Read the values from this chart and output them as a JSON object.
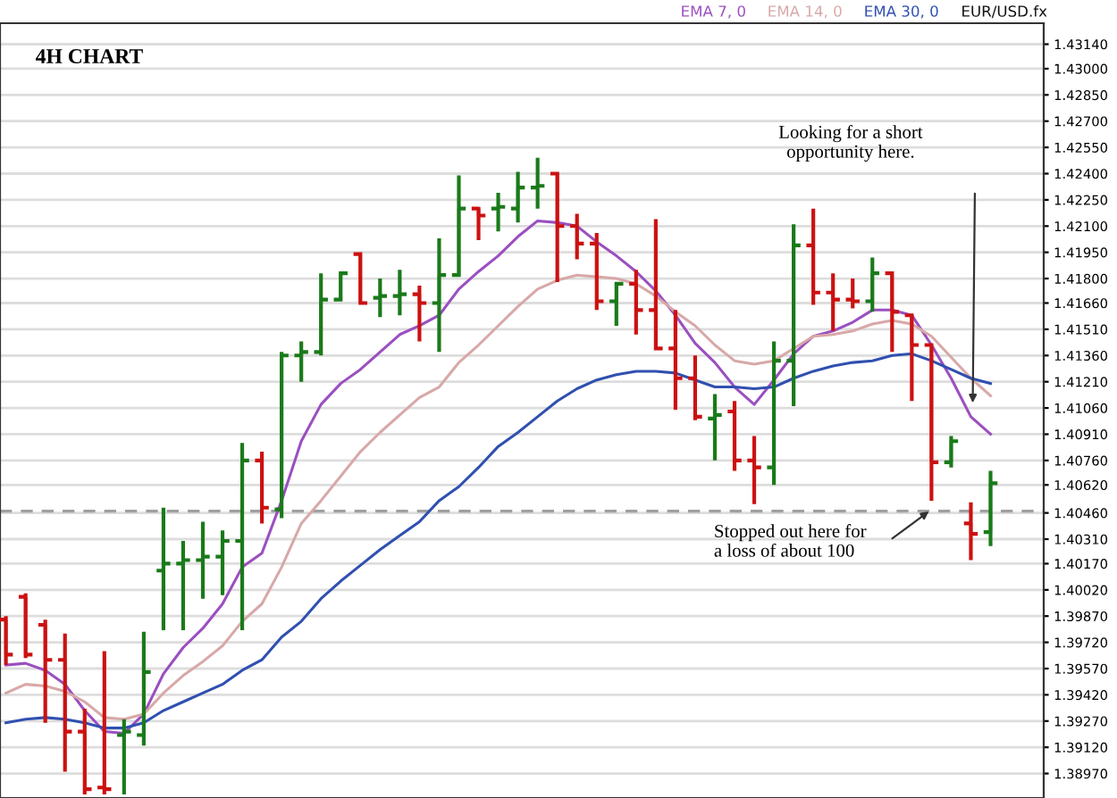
{
  "chart_data": {
    "type": "candlestick",
    "title": "4H CHART",
    "categories": [
      null,
      null,
      null,
      null,
      null,
      null,
      null,
      null,
      null,
      null,
      null,
      null,
      null,
      null,
      null,
      null,
      null,
      null,
      null,
      null,
      null,
      null,
      null,
      null,
      null,
      null,
      null,
      null,
      null,
      null,
      null,
      null,
      null,
      null,
      null,
      null,
      null,
      null,
      null,
      null,
      null,
      null,
      null,
      null,
      null,
      null,
      null,
      null,
      null,
      null,
      null
    ],
    "ohlc": [
      [
        1.3985,
        1.3987,
        1.3959,
        1.3965
      ],
      [
        1.3998,
        1.4,
        1.3963,
        1.3965
      ],
      [
        1.3982,
        1.3985,
        1.3926,
        1.3962
      ],
      [
        1.3962,
        1.3977,
        1.3898,
        1.3921
      ],
      [
        1.3921,
        1.3934,
        1.3885,
        1.3888
      ],
      [
        1.3889,
        1.3967,
        1.3885,
        1.3888
      ],
      [
        1.3919,
        1.3928,
        1.3885,
        1.3921
      ],
      [
        1.3919,
        1.3978,
        1.3913,
        1.3955
      ],
      [
        1.4013,
        1.4049,
        1.3979,
        1.4017
      ],
      [
        1.4017,
        1.403,
        1.3979,
        1.4019
      ],
      [
        1.4019,
        1.4041,
        1.3997,
        1.4021
      ],
      [
        1.4021,
        1.4036,
        1.3999,
        1.403
      ],
      [
        1.403,
        1.4086,
        1.3979,
        1.4076
      ],
      [
        1.4076,
        1.4081,
        1.404,
        1.4049
      ],
      [
        1.4048,
        1.4138,
        1.4043,
        1.4136
      ],
      [
        1.4136,
        1.4144,
        1.4121,
        1.4138
      ],
      [
        1.4138,
        1.4183,
        1.4136,
        1.4168
      ],
      [
        1.4168,
        1.4183,
        1.4167,
        1.4183
      ],
      [
        1.4194,
        1.4194,
        1.4165,
        1.4166
      ],
      [
        1.4169,
        1.418,
        1.4158,
        1.417
      ],
      [
        1.417,
        1.4185,
        1.4159,
        1.4171
      ],
      [
        1.4171,
        1.4176,
        1.4144,
        1.4166
      ],
      [
        1.4166,
        1.4203,
        1.4138,
        1.4182
      ],
      [
        1.4182,
        1.4239,
        1.4181,
        1.422
      ],
      [
        1.422,
        1.4221,
        1.4202,
        1.4216
      ],
      [
        1.422,
        1.4229,
        1.4207,
        1.4221
      ],
      [
        1.422,
        1.4241,
        1.4212,
        1.4232
      ],
      [
        1.4232,
        1.4249,
        1.422,
        1.4233
      ],
      [
        1.424,
        1.4241,
        1.4178,
        1.421
      ],
      [
        1.421,
        1.4217,
        1.4191,
        1.42
      ],
      [
        1.42,
        1.4206,
        1.4162,
        1.4167
      ],
      [
        1.4167,
        1.4178,
        1.4153,
        1.4177
      ],
      [
        1.4177,
        1.4185,
        1.4148,
        1.4162
      ],
      [
        1.4162,
        1.4214,
        1.4139,
        1.414
      ],
      [
        1.414,
        1.4162,
        1.4105,
        1.4123
      ],
      [
        1.4123,
        1.4136,
        1.4099,
        1.4101
      ],
      [
        1.41,
        1.4114,
        1.4076,
        1.4102
      ],
      [
        1.4104,
        1.411,
        1.407,
        1.4076
      ],
      [
        1.4076,
        1.409,
        1.4051,
        1.4072
      ],
      [
        1.4072,
        1.4144,
        1.4062,
        1.4133
      ],
      [
        1.4133,
        1.4211,
        1.4107,
        1.4199
      ],
      [
        1.4199,
        1.422,
        1.4165,
        1.4172
      ],
      [
        1.4172,
        1.4183,
        1.415,
        1.4168
      ],
      [
        1.4168,
        1.418,
        1.4163,
        1.4167
      ],
      [
        1.4167,
        1.4192,
        1.4161,
        1.4183
      ],
      [
        1.4183,
        1.4183,
        1.4138,
        1.4161
      ],
      [
        1.4159,
        1.416,
        1.411,
        1.4142
      ],
      [
        1.4142,
        1.4143,
        1.4053,
        1.4075
      ],
      [
        1.4075,
        1.409,
        1.4072,
        1.4087
      ],
      [
        1.404,
        1.4052,
        1.4019,
        1.4034
      ],
      [
        1.4035,
        1.407,
        1.4027,
        1.4063
      ]
    ],
    "colors": [
      "#cc1111",
      "#cc1111",
      "#cc1111",
      "#cc1111",
      "#cc1111",
      "#cc1111",
      "#1a7a1a",
      "#1a7a1a",
      "#1a7a1a",
      "#1a7a1a",
      "#1a7a1a",
      "#1a7a1a",
      "#1a7a1a",
      "#cc1111",
      "#1a7a1a",
      "#1a7a1a",
      "#1a7a1a",
      "#1a7a1a",
      "#cc1111",
      "#1a7a1a",
      "#1a7a1a",
      "#cc1111",
      "#1a7a1a",
      "#1a7a1a",
      "#cc1111",
      "#1a7a1a",
      "#1a7a1a",
      "#1a7a1a",
      "#cc1111",
      "#cc1111",
      "#cc1111",
      "#1a7a1a",
      "#cc1111",
      "#cc1111",
      "#cc1111",
      "#cc1111",
      "#1a7a1a",
      "#cc1111",
      "#cc1111",
      "#1a7a1a",
      "#1a7a1a",
      "#cc1111",
      "#cc1111",
      "#cc1111",
      "#1a7a1a",
      "#cc1111",
      "#cc1111",
      "#cc1111",
      "#1a7a1a",
      "#cc1111",
      "#1a7a1a"
    ],
    "series": [
      {
        "name": "EMA 7, 0",
        "type": "line",
        "color": "#9b4fc0",
        "values": [
          1.3959,
          1.396,
          1.3956,
          1.3948,
          1.3933,
          1.3921,
          1.392,
          1.3931,
          1.3954,
          1.3969,
          1.398,
          1.3994,
          1.4015,
          1.4023,
          1.4053,
          1.4087,
          1.4108,
          1.412,
          1.4128,
          1.4138,
          1.4148,
          1.4153,
          1.4159,
          1.4174,
          1.4184,
          1.4193,
          1.4204,
          1.4213,
          1.4212,
          1.421,
          1.4201,
          1.4193,
          1.4184,
          1.4173,
          1.4159,
          1.4143,
          1.4132,
          1.4118,
          1.4108,
          1.4122,
          1.4137,
          1.4147,
          1.415,
          1.4155,
          1.4162,
          1.4162,
          1.4159,
          1.4142,
          1.4123,
          1.4101,
          1.4091
        ]
      },
      {
        "name": "EMA 14, 0",
        "type": "line",
        "color": "#d8a8a8",
        "values": [
          1.3943,
          1.3948,
          1.3947,
          1.3944,
          1.3938,
          1.3929,
          1.3928,
          1.3931,
          1.3943,
          1.3953,
          1.3961,
          1.397,
          1.3984,
          1.3994,
          1.4015,
          1.404,
          1.4053,
          1.4067,
          1.4081,
          1.4092,
          1.4102,
          1.4112,
          1.4118,
          1.4132,
          1.4142,
          1.4153,
          1.4164,
          1.4174,
          1.4179,
          1.4182,
          1.4181,
          1.418,
          1.4177,
          1.417,
          1.4161,
          1.4153,
          1.4142,
          1.4133,
          1.4131,
          1.4133,
          1.414,
          1.4147,
          1.4148,
          1.415,
          1.4154,
          1.4156,
          1.4154,
          1.4147,
          1.4135,
          1.4123,
          1.4113
        ]
      },
      {
        "name": "EMA 30, 0",
        "type": "line",
        "color": "#3050b0",
        "values": [
          1.3926,
          1.3928,
          1.3929,
          1.3928,
          1.3926,
          1.3923,
          1.3923,
          1.3926,
          1.3933,
          1.3938,
          1.3943,
          1.3948,
          1.3956,
          1.3962,
          1.3975,
          1.3984,
          1.3997,
          1.4007,
          1.4016,
          1.4025,
          1.4033,
          1.4041,
          1.4053,
          1.4061,
          1.4072,
          1.4084,
          1.4092,
          1.4101,
          1.411,
          1.4117,
          1.4122,
          1.4125,
          1.4127,
          1.4127,
          1.4126,
          1.4122,
          1.4118,
          1.4118,
          1.4117,
          1.4118,
          1.4123,
          1.4127,
          1.413,
          1.4132,
          1.4133,
          1.4136,
          1.4137,
          1.4133,
          1.4128,
          1.4123,
          1.412
        ]
      }
    ],
    "ylim": [
      1.3883,
      1.4326
    ],
    "yticks": [
      {
        "value": 1.4314,
        "label": "1.43140"
      },
      {
        "value": 1.43,
        "label": "1.43000"
      },
      {
        "value": 1.4285,
        "label": "1.42850"
      },
      {
        "value": 1.427,
        "label": "1.42700"
      },
      {
        "value": 1.4255,
        "label": "1.42550"
      },
      {
        "value": 1.424,
        "label": "1.42400"
      },
      {
        "value": 1.4225,
        "label": "1.42250"
      },
      {
        "value": 1.421,
        "label": "1.42100"
      },
      {
        "value": 1.4195,
        "label": "1.41950"
      },
      {
        "value": 1.418,
        "label": "1.41800"
      },
      {
        "value": 1.4166,
        "label": "1.41660"
      },
      {
        "value": 1.4151,
        "label": "1.41510"
      },
      {
        "value": 1.4136,
        "label": "1.41360"
      },
      {
        "value": 1.4121,
        "label": "1.41210"
      },
      {
        "value": 1.4106,
        "label": "1.41060"
      },
      {
        "value": 1.4091,
        "label": "1.40910"
      },
      {
        "value": 1.4076,
        "label": "1.40760"
      },
      {
        "value": 1.4062,
        "label": "1.40620"
      },
      {
        "value": 1.4046,
        "label": "1.40460"
      },
      {
        "value": 1.4031,
        "label": "1.40310"
      },
      {
        "value": 1.4017,
        "label": "1.40170"
      },
      {
        "value": 1.4002,
        "label": "1.40020"
      },
      {
        "value": 1.3987,
        "label": "1.39870"
      },
      {
        "value": 1.3972,
        "label": "1.39720"
      },
      {
        "value": 1.3957,
        "label": "1.39570"
      },
      {
        "value": 1.3942,
        "label": "1.39420"
      },
      {
        "value": 1.3927,
        "label": "1.39270"
      },
      {
        "value": 1.3912,
        "label": "1.39120"
      },
      {
        "value": 1.3897,
        "label": "1.38970"
      }
    ],
    "tick_labels": "y",
    "grid": "y",
    "legend": "top right",
    "ref_lines": [
      {
        "axis": "y",
        "value": 1.4047,
        "color": "#a0a0a0",
        "line_style": "dashed"
      }
    ],
    "annotations": [
      "EUR/USD.fx",
      "Looking for a short\nopportunity here.",
      "Stopped out here for\na loss of about 100"
    ]
  }
}
